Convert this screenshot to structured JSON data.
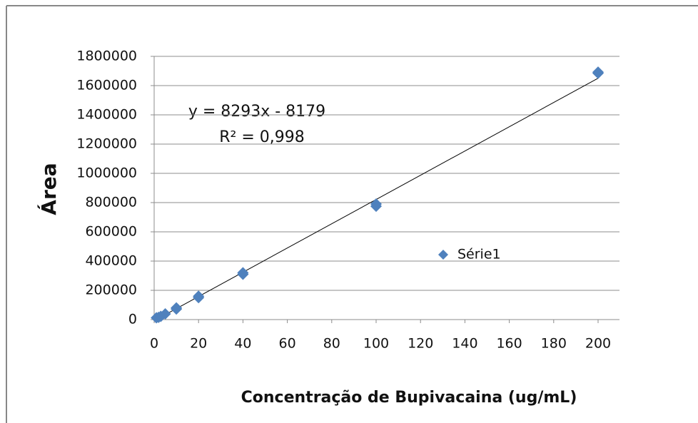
{
  "chart_data": {
    "type": "scatter",
    "xlabel": "Concentração de Bupivacaina (ug/mL)",
    "ylabel": "Área",
    "series": [
      {
        "name": "Série1",
        "color": "#4f81bd",
        "x": [
          1,
          2,
          3,
          5,
          10,
          10,
          20,
          20,
          40,
          40,
          100,
          100,
          200,
          200
        ],
        "values": [
          12000,
          15000,
          22000,
          39000,
          72000,
          80000,
          150000,
          160000,
          310000,
          320000,
          775000,
          790000,
          1685000,
          1692000
        ]
      }
    ],
    "trendline": {
      "slope": 8293,
      "intercept": -8179
    },
    "annotations": [
      "y = 8293x - 8179",
      "R² = 0,998"
    ],
    "xlim": [
      0,
      200
    ],
    "xticks": [
      0,
      20,
      40,
      60,
      80,
      100,
      120,
      140,
      160,
      180,
      200
    ],
    "ylim": [
      0,
      1800000
    ],
    "yticks": [
      0,
      200000,
      400000,
      600000,
      800000,
      1000000,
      1200000,
      1400000,
      1600000,
      1800000
    ],
    "grid": true,
    "legend": "right"
  }
}
